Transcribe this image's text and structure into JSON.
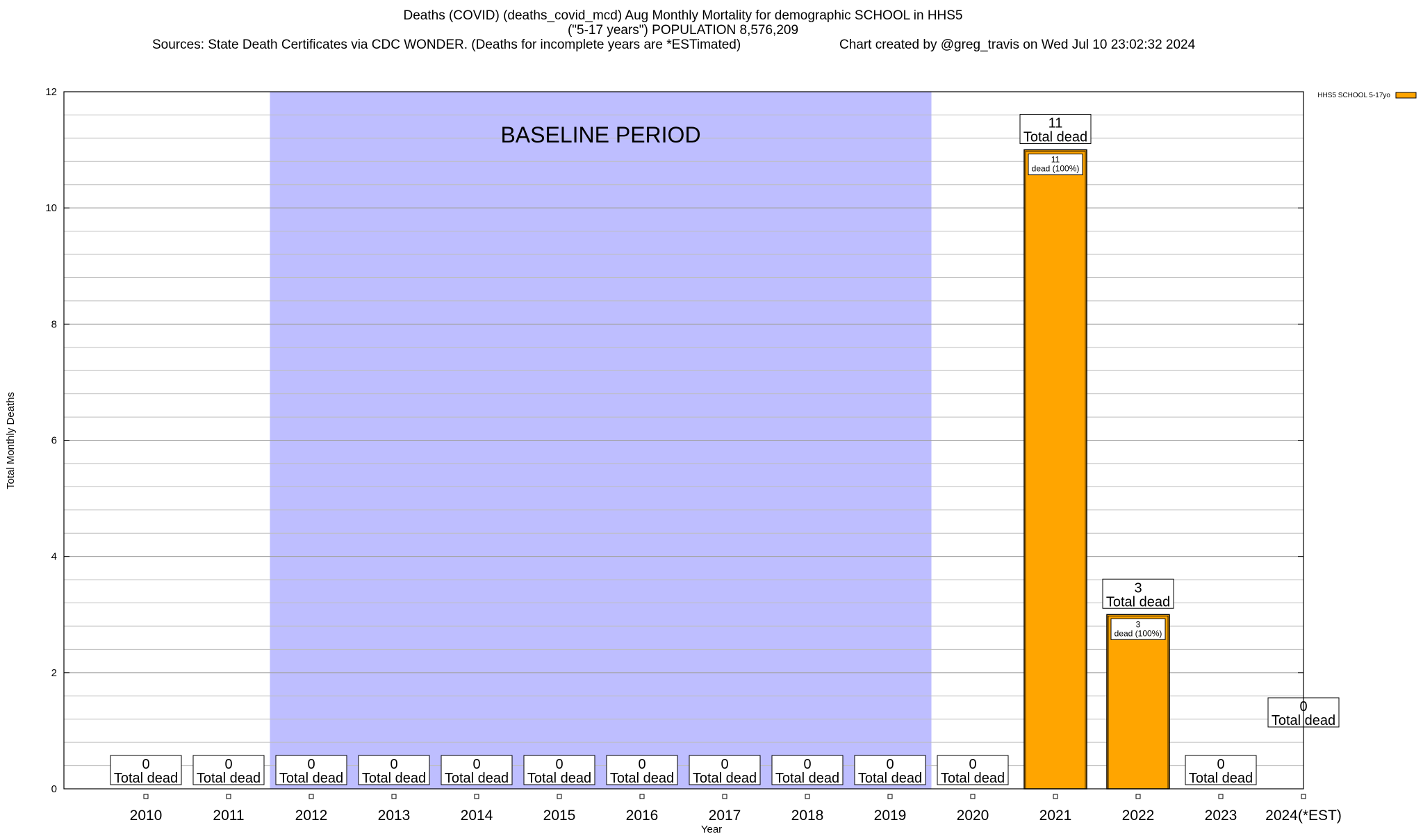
{
  "header": {
    "title_line1": "Deaths (COVID) (deaths_covid_mcd) Aug Monthly Mortality for demographic SCHOOL in HHS5",
    "title_line2": "(\"5-17 years\") POPULATION 8,576,209",
    "sources": "Sources: State Death Certificates via CDC WONDER. (Deaths for incomplete years are *ESTimated)",
    "credit": "Chart created by @greg_travis on Wed Jul 10 23:02:32 2024"
  },
  "chart_data": {
    "type": "bar",
    "xlabel": "Year",
    "ylabel": "Total Monthly Deaths",
    "ylim": [
      0,
      12
    ],
    "y_ticks": [
      0,
      2,
      4,
      6,
      8,
      10,
      12
    ],
    "y_minor_step": 0.4,
    "grid": true,
    "legend_position": "top-right",
    "categories": [
      "2010",
      "2011",
      "2012",
      "2013",
      "2014",
      "2015",
      "2016",
      "2017",
      "2018",
      "2019",
      "2020",
      "2021",
      "2022",
      "2023",
      "2024(*EST)"
    ],
    "series": [
      {
        "name": "HHS5 SCHOOL 5-17yo",
        "color": "#FFA500",
        "values": [
          0,
          0,
          0,
          0,
          0,
          0,
          0,
          0,
          0,
          0,
          0,
          11,
          3,
          0,
          0
        ],
        "bar_labels": [
          "",
          "",
          "",
          "",
          "",
          "",
          "",
          "",
          "",
          "",
          "",
          "11\ndead (100%)",
          "3\ndead (100%)",
          "",
          ""
        ]
      }
    ],
    "total_labels": [
      {
        "value": "0",
        "text": "Total dead"
      },
      {
        "value": "0",
        "text": "Total dead"
      },
      {
        "value": "0",
        "text": "Total dead"
      },
      {
        "value": "0",
        "text": "Total dead"
      },
      {
        "value": "0",
        "text": "Total dead"
      },
      {
        "value": "0",
        "text": "Total dead"
      },
      {
        "value": "0",
        "text": "Total dead"
      },
      {
        "value": "0",
        "text": "Total dead"
      },
      {
        "value": "0",
        "text": "Total dead"
      },
      {
        "value": "0",
        "text": "Total dead"
      },
      {
        "value": "0",
        "text": "Total dead"
      },
      {
        "value": "11",
        "text": "Total dead"
      },
      {
        "value": "3",
        "text": "Total dead"
      },
      {
        "value": "0",
        "text": "Total dead"
      },
      {
        "value": "0",
        "text": "Total dead"
      }
    ],
    "baseline": {
      "label": "BASELINE PERIOD",
      "from": "2012",
      "to": "2019",
      "color": "#BEBEFF"
    }
  }
}
